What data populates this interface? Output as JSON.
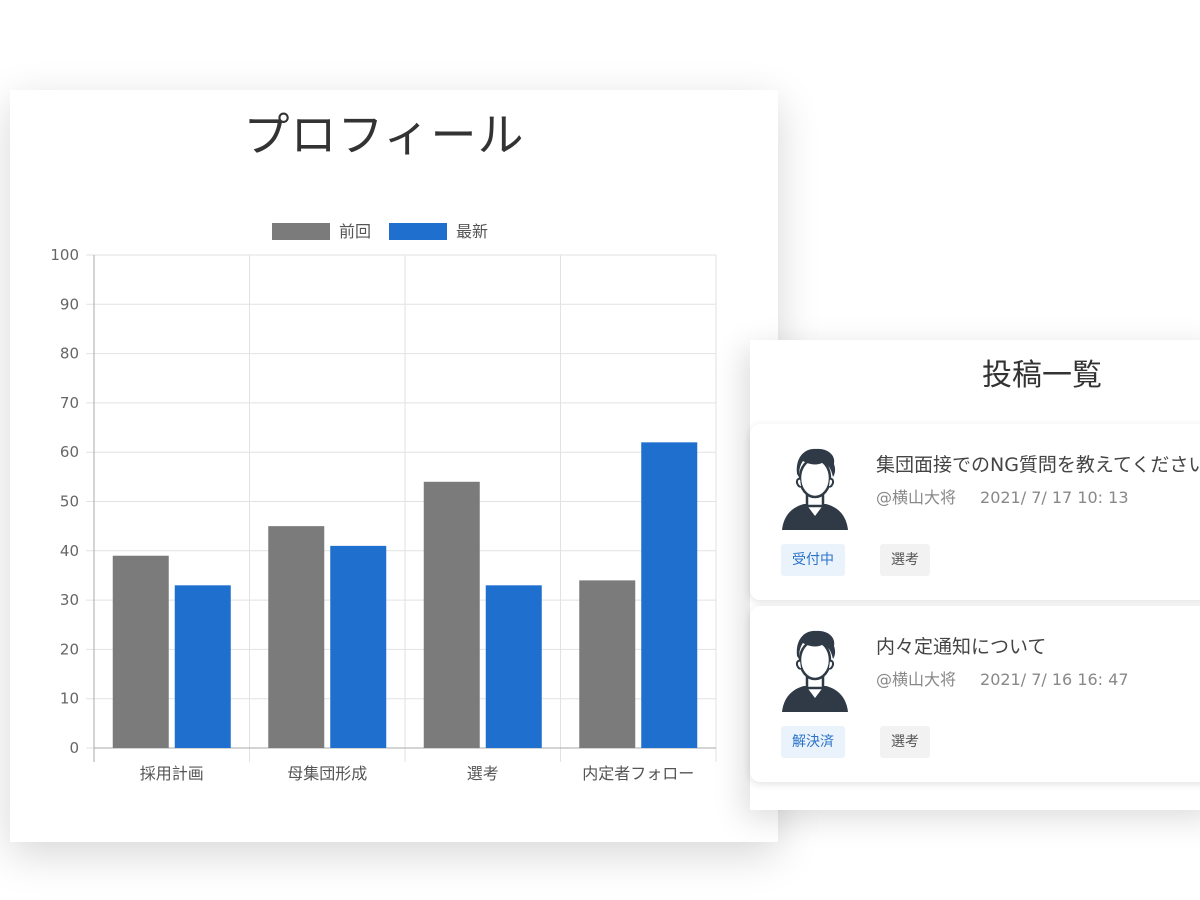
{
  "profile": {
    "title": "プロフィール"
  },
  "chart_data": {
    "type": "bar",
    "categories": [
      "採用計画",
      "母集団形成",
      "選考",
      "内定者フォロー"
    ],
    "series": [
      {
        "name": "前回",
        "values": [
          39,
          45,
          54,
          34
        ],
        "color": "#7b7b7b"
      },
      {
        "name": "最新",
        "values": [
          33,
          41,
          33,
          62
        ],
        "color": "#1f6fce"
      }
    ],
    "ylim": [
      0,
      100
    ],
    "yticks": [
      0,
      10,
      20,
      30,
      40,
      50,
      60,
      70,
      80,
      90,
      100
    ],
    "grid": true,
    "legend": "top"
  },
  "posts": {
    "title": "投稿一覧",
    "items": [
      {
        "title": "集団面接でのNG質問を教えてください",
        "author": "@横山大将",
        "date": "2021/ 7/ 17 10: 13",
        "status": "受付中",
        "category": "選考"
      },
      {
        "title": "内々定通知について",
        "author": "@横山大将",
        "date": "2021/ 7/ 16 16: 47",
        "status": "解決済",
        "category": "選考"
      }
    ]
  }
}
